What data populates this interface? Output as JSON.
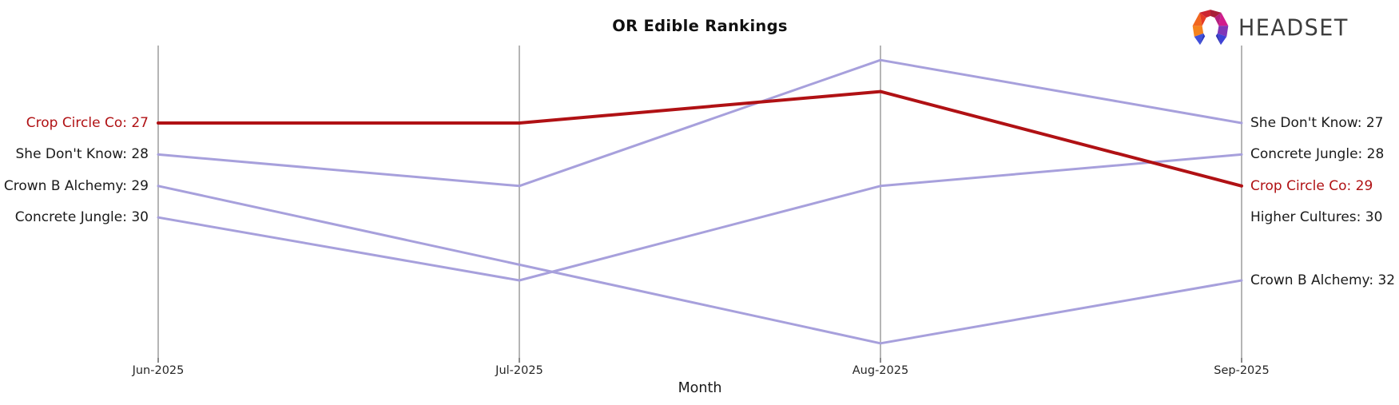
{
  "logo": {
    "text": "HEADSET"
  },
  "chart_data": {
    "type": "line",
    "title": "OR Edible Rankings",
    "xlabel": "Month",
    "x": [
      "Jun-2025",
      "Jul-2025",
      "Aug-2025",
      "Sep-2025"
    ],
    "value_semantics": "product ranking position (lower number = better rank, plotted higher)",
    "ylim_rank": [
      24.5,
      34.6
    ],
    "grid": "off",
    "highlight_color": "#b01114",
    "line_color": "#a7a0dc",
    "axis_color": "#b5b5b5",
    "series": [
      {
        "name": "Crop Circle Co",
        "values": [
          27,
          27,
          26,
          29
        ],
        "highlighted": true
      },
      {
        "name": "She Don't Know",
        "values": [
          28,
          29,
          25,
          27
        ],
        "highlighted": false
      },
      {
        "name": "Crown B Alchemy",
        "values": [
          29,
          null,
          34,
          32
        ],
        "highlighted": false
      },
      {
        "name": "Concrete Jungle",
        "values": [
          30,
          32,
          29,
          28
        ],
        "highlighted": false
      },
      {
        "name": "Higher Cultures",
        "values": [
          null,
          null,
          null,
          30
        ],
        "highlighted": false
      }
    ],
    "left_labels": [
      {
        "text": "Crop Circle Co: 27",
        "rank": 27,
        "highlighted": true
      },
      {
        "text": "She Don't Know: 28",
        "rank": 28,
        "highlighted": false
      },
      {
        "text": "Crown B Alchemy: 29",
        "rank": 29,
        "highlighted": false
      },
      {
        "text": "Concrete Jungle: 30",
        "rank": 30,
        "highlighted": false
      }
    ],
    "right_labels": [
      {
        "text": "She Don't Know: 27",
        "rank": 27,
        "highlighted": false
      },
      {
        "text": "Concrete Jungle: 28",
        "rank": 28,
        "highlighted": false
      },
      {
        "text": "Crop Circle Co: 29",
        "rank": 29,
        "highlighted": true
      },
      {
        "text": "Higher Cultures: 30",
        "rank": 30,
        "highlighted": false
      },
      {
        "text": "Crown B Alchemy: 32",
        "rank": 32,
        "highlighted": false
      }
    ]
  }
}
